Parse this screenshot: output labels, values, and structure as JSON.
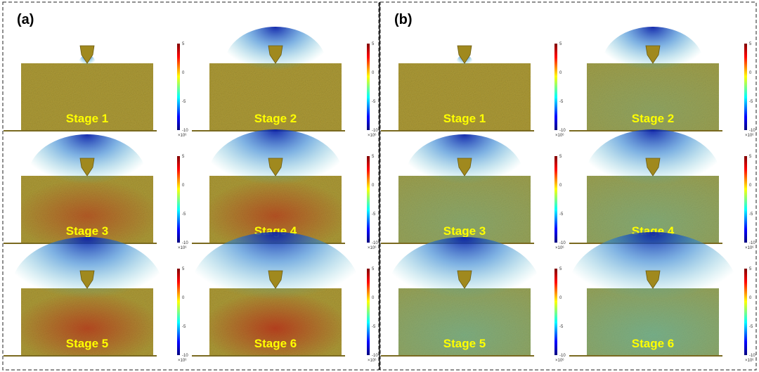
{
  "panels": [
    {
      "label": "(a)",
      "stages": [
        "Stage 1",
        "Stage 2",
        "Stage 3",
        "Stage 4",
        "Stage 5",
        "Stage 6"
      ]
    },
    {
      "label": "(b)",
      "stages": [
        "Stage 1",
        "Stage 2",
        "Stage 3",
        "Stage 4",
        "Stage 5",
        "Stage 6"
      ]
    }
  ],
  "colorbar": {
    "ticks": [
      "5",
      "0",
      "-5",
      "-10"
    ],
    "exponent": "×10⁶"
  }
}
